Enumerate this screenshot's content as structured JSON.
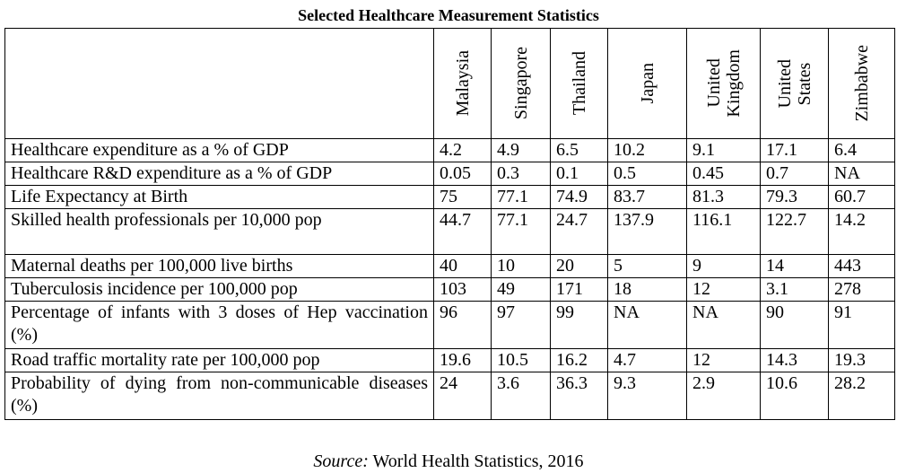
{
  "title": "Selected Healthcare Measurement Statistics",
  "columns": [
    "Malaysia",
    "Singapore",
    "Thailand",
    "Japan",
    "United\nKingdom",
    "United\nStates",
    "Zimbabwe"
  ],
  "rows": [
    {
      "label": "Healthcare expenditure as a % of GDP",
      "values": [
        "4.2",
        "4.9",
        "6.5",
        "10.2",
        "9.1",
        "17.1",
        "6.4"
      ]
    },
    {
      "label": "Healthcare R&D expenditure as a % of GDP",
      "values": [
        "0.05",
        "0.3",
        "0.1",
        "0.5",
        "0.45",
        "0.7",
        "NA"
      ]
    },
    {
      "label": "Life Expectancy at Birth",
      "values": [
        "75",
        "77.1",
        "74.9",
        "83.7",
        "81.3",
        "79.3",
        "60.7"
      ]
    },
    {
      "label": "Skilled health professionals per 10,000 pop",
      "values": [
        "44.7",
        "77.1",
        "24.7",
        "137.9",
        "116.1",
        "122.7",
        "14.2"
      ]
    },
    {
      "label": "Maternal deaths per 100,000 live births",
      "values": [
        "40",
        "10",
        "20",
        "5",
        "9",
        "14",
        "443"
      ]
    },
    {
      "label": "Tuberculosis incidence per 100,000 pop",
      "values": [
        "103",
        "49",
        "171",
        "18",
        "12",
        "3.1",
        "278"
      ]
    },
    {
      "label": "Percentage of infants with 3 doses of Hep vaccination (%)",
      "values": [
        "96",
        "97",
        "99",
        "NA",
        "NA",
        "90",
        "91"
      ]
    },
    {
      "label": "Road traffic mortality rate per 100,000 pop",
      "values": [
        "19.6",
        "10.5",
        "16.2",
        "4.7",
        "12",
        "14.3",
        "19.3"
      ]
    },
    {
      "label": "Probability of dying from non-communicable diseases (%)",
      "values": [
        "24",
        "3.6",
        "36.3",
        "9.3",
        "2.9",
        "10.6",
        "28.2"
      ]
    }
  ],
  "source_label": "Source:",
  "source_text": " World Health Statistics, 2016"
}
